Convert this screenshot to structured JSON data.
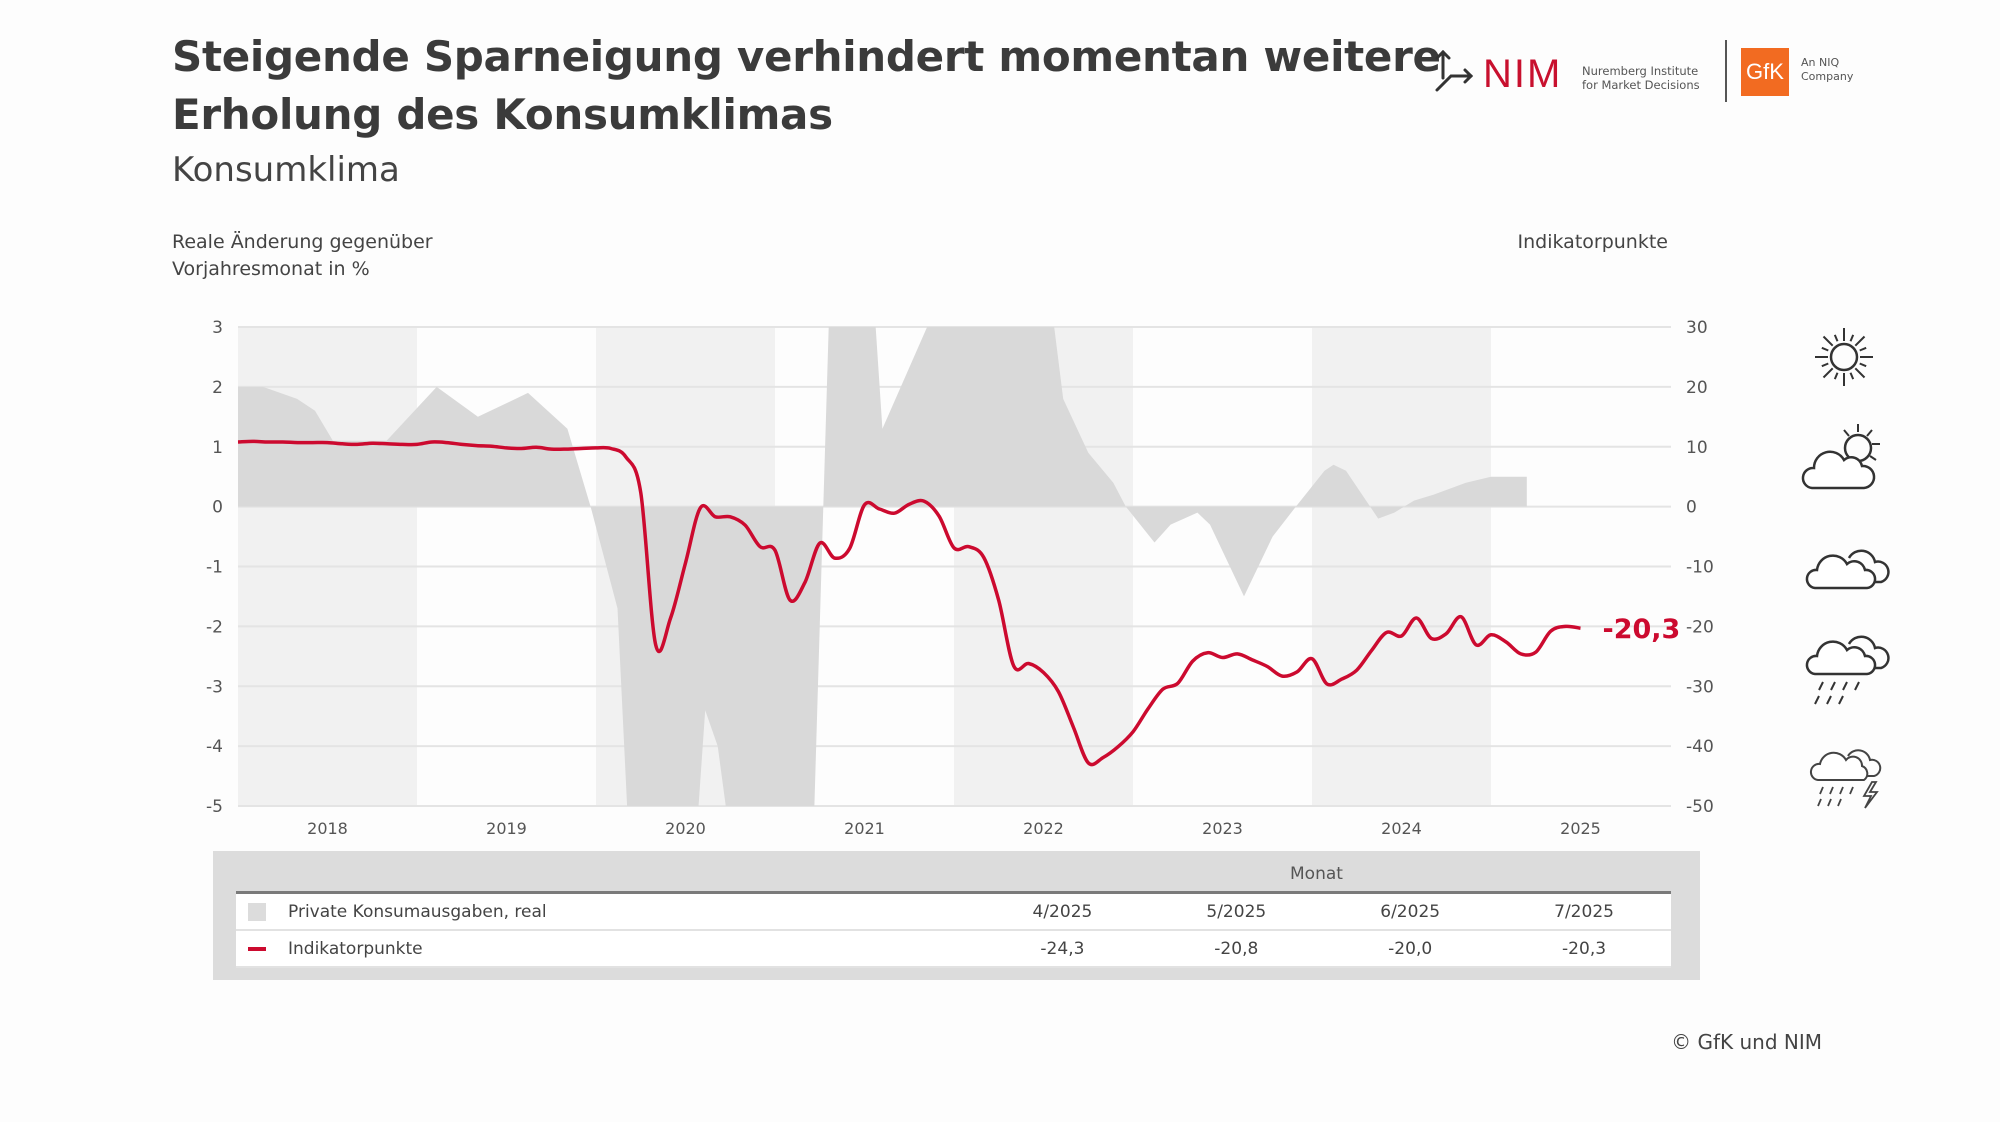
{
  "header": {
    "title_line1": "Steigende Sparneigung verhindert momentan weitere",
    "title_line2": "Erholung des Konsumklimas",
    "subtitle": "Konsumklima"
  },
  "logos": {
    "nim": "NIM",
    "nim_sub1": "Nuremberg Institute",
    "nim_sub2": "for Market Decisions",
    "gfk": "GfK",
    "gfk_sub1": "An NIQ",
    "gfk_sub2": "Company"
  },
  "chart_data": {
    "type": "line",
    "left_axis_label_line1": "Reale Änderung gegenüber",
    "left_axis_label_line2": "Vorjahresmonat in %",
    "right_axis_label": "Indikatorpunkte",
    "left_ylim": [
      -5,
      3
    ],
    "left_ticks": [
      "3",
      "2",
      "1",
      "0",
      "-1",
      "-2",
      "-3",
      "-4",
      "-5"
    ],
    "right_ylim": [
      -50,
      30
    ],
    "right_ticks": [
      "30",
      "20",
      "10",
      "0",
      "-10",
      "-20",
      "-30",
      "-40",
      "-50"
    ],
    "x_ticks": [
      "2018",
      "2019",
      "2020",
      "2021",
      "2022",
      "2023",
      "2024",
      "2025"
    ],
    "shaded_years": [
      2018,
      2020,
      2022,
      2024
    ],
    "grid": true,
    "series": [
      {
        "name": "Private Konsumausgaben, real",
        "type": "area",
        "axis": "left",
        "color": "#d9d9d9",
        "points": [
          [
            2018.0,
            2.0
          ],
          [
            2018.14,
            2.0
          ],
          [
            2018.33,
            1.8
          ],
          [
            2018.43,
            1.6
          ],
          [
            2018.53,
            1.1
          ],
          [
            2018.83,
            1.1
          ],
          [
            2019.11,
            2.0
          ],
          [
            2019.34,
            1.5
          ],
          [
            2019.62,
            1.9
          ],
          [
            2019.84,
            1.3
          ],
          [
            2019.97,
            0
          ],
          [
            2020.12,
            -1.7
          ],
          [
            2020.19,
            -6
          ],
          [
            2020.55,
            -6
          ],
          [
            2020.61,
            -3.4
          ],
          [
            2020.68,
            -4.0
          ],
          [
            2020.77,
            -6
          ],
          [
            2021.21,
            -6
          ],
          [
            2021.27,
            0
          ],
          [
            2021.31,
            4
          ],
          [
            2021.54,
            4
          ],
          [
            2021.6,
            1.3
          ],
          [
            2021.85,
            3.0
          ],
          [
            2021.9,
            4
          ],
          [
            2022.5,
            4
          ],
          [
            2022.56,
            3.0
          ],
          [
            2022.61,
            1.8
          ],
          [
            2022.75,
            0.9
          ],
          [
            2022.89,
            0.4
          ],
          [
            2022.96,
            0
          ],
          [
            2023.12,
            -0.6
          ],
          [
            2023.21,
            -0.3
          ],
          [
            2023.36,
            -0.1
          ],
          [
            2023.43,
            -0.3
          ],
          [
            2023.62,
            -1.5
          ],
          [
            2023.78,
            -0.5
          ],
          [
            2023.91,
            0
          ],
          [
            2024.07,
            0.6
          ],
          [
            2024.12,
            0.7
          ],
          [
            2024.19,
            0.6
          ],
          [
            2024.37,
            -0.2
          ],
          [
            2024.46,
            -0.1
          ],
          [
            2024.57,
            0.1
          ],
          [
            2024.68,
            0.2
          ],
          [
            2024.86,
            0.4
          ],
          [
            2025.0,
            0.5
          ],
          [
            2025.2,
            0.5
          ]
        ]
      },
      {
        "name": "Indikatorpunkte",
        "type": "line",
        "axis": "right",
        "color": "#cc0a2f",
        "start": "2018-01",
        "values": [
          10.8,
          10.9,
          10.8,
          10.8,
          10.7,
          10.7,
          10.7,
          10.5,
          10.4,
          10.6,
          10.5,
          10.4,
          10.4,
          10.8,
          10.7,
          10.4,
          10.2,
          10.1,
          9.8,
          9.7,
          9.9,
          9.6,
          9.6,
          9.7,
          9.8,
          9.7,
          8.3,
          2.3,
          -23.1,
          -18.6,
          -9.4,
          -0.2,
          -1.7,
          -1.7,
          -3.1,
          -6.7,
          -7.3,
          -15.6,
          -12.7,
          -6.1,
          -8.6,
          -7.0,
          0.3,
          -0.4,
          -1.1,
          0.4,
          0.9,
          -1.6,
          -6.9,
          -6.7,
          -8.5,
          -15.7,
          -26.6,
          -26.2,
          -27.7,
          -30.9,
          -36.8,
          -42.8,
          -41.9,
          -40.1,
          -37.6,
          -33.8,
          -30.5,
          -29.5,
          -25.8,
          -24.4,
          -25.2,
          -24.6,
          -25.6,
          -26.7,
          -28.3,
          -27.6,
          -25.4,
          -29.6,
          -28.8,
          -27.3,
          -24.0,
          -21.0,
          -21.6,
          -18.6,
          -22.0,
          -21.2,
          -18.4,
          -23.1,
          -21.4,
          -22.6,
          -24.6,
          -24.3,
          -20.8,
          -20.0,
          -20.3
        ],
        "end_label": "-20,3"
      }
    ]
  },
  "weather_icons": [
    "sun-icon",
    "sun-behind-cloud-icon",
    "cloud-icon",
    "rain-cloud-icon",
    "thunderstorm-icon"
  ],
  "table": {
    "header": "Monat",
    "columns": [
      "4/2025",
      "5/2025",
      "6/2025",
      "7/2025"
    ],
    "rows": [
      {
        "label": "Private Konsumausgaben, real",
        "values": [
          "",
          "",
          "",
          ""
        ]
      },
      {
        "label": "Indikatorpunkte",
        "values": [
          "-24,3",
          "-20,8",
          "-20,0",
          "-20,3"
        ]
      }
    ]
  },
  "footer": {
    "copyright": "© GfK und NIM"
  }
}
